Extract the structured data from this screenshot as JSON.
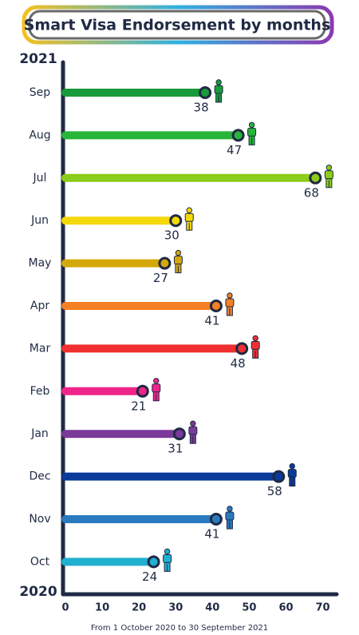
{
  "chart_data": {
    "type": "lollipop",
    "title": "Smart Visa Endorsement by months",
    "year_top": "2021",
    "year_bottom": "2020",
    "note": "From 1 October 2020 to 30 September 2021",
    "categories": [
      "Sep",
      "Aug",
      "Jul",
      "Jun",
      "May",
      "Apr",
      "Mar",
      "Feb",
      "Jan",
      "Dec",
      "Nov",
      "Oct"
    ],
    "values": [
      38,
      47,
      68,
      30,
      27,
      41,
      48,
      21,
      31,
      58,
      41,
      24
    ],
    "colors": [
      "#1a9a3a",
      "#27b53a",
      "#8ccc1a",
      "#f4d80a",
      "#d4a80a",
      "#f57f25",
      "#f03030",
      "#f0258a",
      "#7a3a9a",
      "#0a3a9a",
      "#2a7ac0",
      "#20b0d0"
    ],
    "xlim": [
      0,
      74
    ],
    "xticks": [
      0,
      10,
      20,
      30,
      40,
      50,
      60,
      70
    ]
  }
}
